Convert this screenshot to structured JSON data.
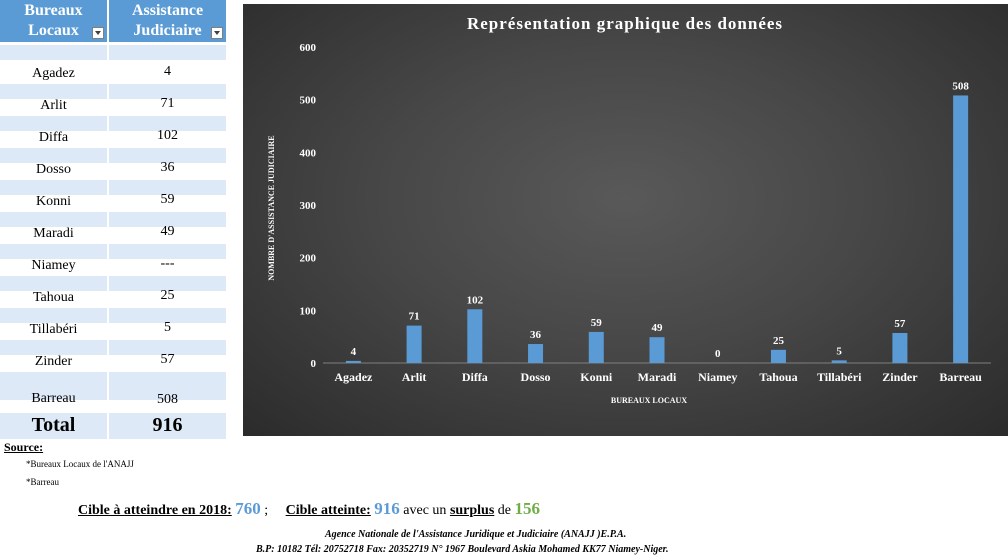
{
  "table": {
    "headers": [
      "Bureaux Locaux",
      "Assistance Judiciaire"
    ],
    "rows": [
      {
        "bureau": "Agadez",
        "value": "4"
      },
      {
        "bureau": "Arlit",
        "value": "71"
      },
      {
        "bureau": "Diffa",
        "value": "102"
      },
      {
        "bureau": "Dosso",
        "value": "36"
      },
      {
        "bureau": "Konni",
        "value": "59"
      },
      {
        "bureau": "Maradi",
        "value": "49"
      },
      {
        "bureau": "Niamey",
        "value": "---"
      },
      {
        "bureau": "Tahoua",
        "value": "25"
      },
      {
        "bureau": "Tillabéri",
        "value": "5"
      },
      {
        "bureau": "Zinder",
        "value": "57"
      },
      {
        "bureau": "Barreau",
        "value": "508"
      }
    ],
    "total_label": "Total",
    "total_value": "916"
  },
  "chart_data": {
    "type": "bar",
    "title": "Représentation graphique des données",
    "xlabel": "BUREAUX LOCAUX",
    "ylabel": "NOMBRE D'ASSISTANCE JUDICIAIRE",
    "categories": [
      "Agadez",
      "Arlit",
      "Diffa",
      "Dosso",
      "Konni",
      "Maradi",
      "Niamey",
      "Tahoua",
      "Tillabéri",
      "Zinder",
      "Barreau"
    ],
    "values": [
      4,
      71,
      102,
      36,
      59,
      49,
      0,
      25,
      5,
      57,
      508
    ],
    "ylim": [
      0,
      600
    ],
    "yticks": [
      0,
      100,
      200,
      300,
      400,
      500,
      600
    ],
    "grid": false,
    "bar_color": "#5b9bd5"
  },
  "footer": {
    "source_label": "Source:",
    "sources": [
      "*Bureaux Locaux de l'ANAJJ",
      "*Barreau"
    ],
    "cible_label": "Cible à atteindre en 2018:",
    "cible_value": "760",
    "separator": ";",
    "atteinte_label": "Cible atteinte:",
    "atteinte_value": "916",
    "avec_text": "avec un",
    "surplus_label": "surplus",
    "de_text": "de",
    "surplus_value": "156",
    "agency_line1": "Agence Nationale de l'Assistance Juridique et Judiciaire (ANAJJ )E.P.A.",
    "agency_line2": "B.P: 10182 Tél: 20752718 Fax: 20352719 N° 1967 Boulevard Askia Mohamed KK77 Niamey-Niger."
  }
}
